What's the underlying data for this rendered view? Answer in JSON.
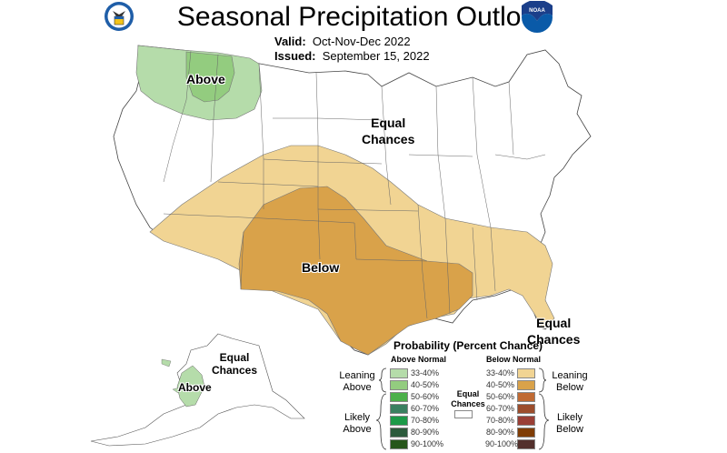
{
  "header": {
    "title": "Seasonal Precipitation Outlook",
    "valid_label": "Valid:",
    "valid_value": "Oct-Nov-Dec 2022",
    "issued_label": "Issued:",
    "issued_value": "September 15, 2022",
    "left_logo": "department-of-commerce-seal",
    "right_logo": "noaa-logo",
    "noaa_text": "NOAA"
  },
  "map": {
    "labels": {
      "conus_above": "Above",
      "conus_equal_1": "Equal",
      "conus_equal_2": "Chances",
      "conus_below": "Below",
      "se_equal_1": "Equal",
      "se_equal_2": "Chances",
      "ak_equal_1": "Equal",
      "ak_equal_2": "Chances",
      "ak_above": "Above"
    },
    "colors": {
      "above_33_40": "#b5dcaa",
      "above_40_50": "#93cc7f",
      "below_33_40": "#f1d493",
      "below_40_50": "#d9a24a",
      "state_lines": "#555555"
    }
  },
  "legend": {
    "title": "Probability (Percent Chance)",
    "above_header": "Above Normal",
    "below_header": "Below Normal",
    "equal_label_1": "Equal",
    "equal_label_2": "Chances",
    "equal_color": "#ffffff",
    "leaning_above_1": "Leaning",
    "leaning_above_2": "Above",
    "likely_above_1": "Likely",
    "likely_above_2": "Above",
    "leaning_below_1": "Leaning",
    "leaning_below_2": "Below",
    "likely_below_1": "Likely",
    "likely_below_2": "Below",
    "above": [
      {
        "range": "33-40%",
        "color": "#b5dcaa"
      },
      {
        "range": "40-50%",
        "color": "#93cc7f"
      },
      {
        "range": "50-60%",
        "color": "#4cb04a"
      },
      {
        "range": "60-70%",
        "color": "#3a8060"
      },
      {
        "range": "70-80%",
        "color": "#1c9a48"
      },
      {
        "range": "80-90%",
        "color": "#2c5a3c"
      },
      {
        "range": "90-100%",
        "color": "#27561b"
      }
    ],
    "below": [
      {
        "range": "33-40%",
        "color": "#f1d493"
      },
      {
        "range": "40-50%",
        "color": "#d9a24a"
      },
      {
        "range": "50-60%",
        "color": "#c06a33"
      },
      {
        "range": "60-70%",
        "color": "#9c4d2c"
      },
      {
        "range": "70-80%",
        "color": "#9a3f36"
      },
      {
        "range": "80-90%",
        "color": "#7f3d06"
      },
      {
        "range": "90-100%",
        "color": "#53302c"
      }
    ]
  }
}
